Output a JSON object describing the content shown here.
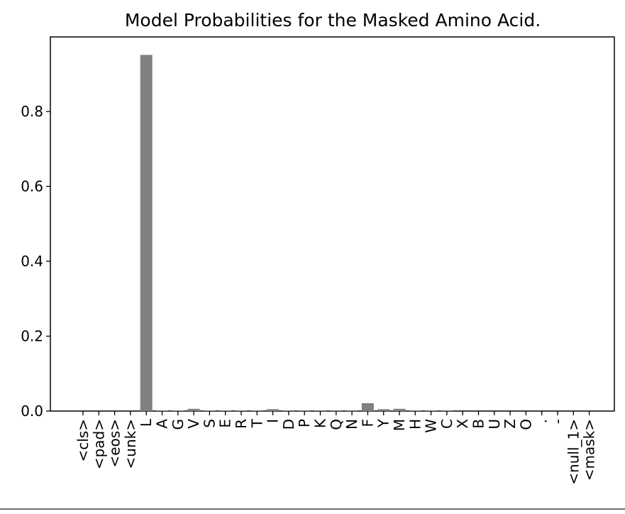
{
  "chart_data": {
    "type": "bar",
    "title": "Model Probabilities for the Masked Amino Acid.",
    "xlabel": "",
    "ylabel": "",
    "categories": [
      "<cls>",
      "<pad>",
      "<eos>",
      "<unk>",
      "L",
      "A",
      "G",
      "V",
      "S",
      "E",
      "R",
      "T",
      "I",
      "D",
      "P",
      "K",
      "Q",
      "N",
      "F",
      "Y",
      "M",
      "H",
      "W",
      "C",
      "X",
      "B",
      "U",
      "Z",
      "O",
      ".",
      "-",
      "<null_1>",
      "<mask>"
    ],
    "values": [
      0,
      0,
      0,
      0,
      0.951,
      0.001,
      0.001,
      0.006,
      0.001,
      0.001,
      0.001,
      0.001,
      0.005,
      0.001,
      0.001,
      0.001,
      0.001,
      0.001,
      0.021,
      0.005,
      0.006,
      0.001,
      0.001,
      0.001,
      0,
      0,
      0,
      0,
      0,
      0,
      0,
      0,
      0
    ],
    "yticks": [
      "0.0",
      "0.2",
      "0.4",
      "0.6",
      "0.8"
    ],
    "ylim": [
      0,
      1.0
    ],
    "bar_color": "#808080",
    "grid": false,
    "legend": "none"
  }
}
